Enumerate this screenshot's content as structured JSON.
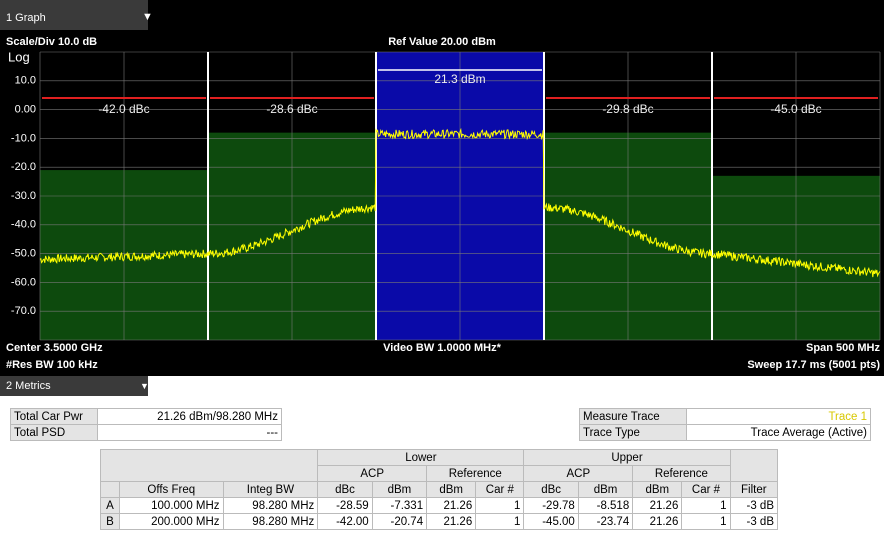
{
  "graph": {
    "tab": "1 Graph",
    "scale": "Scale/Div 10.0 dB",
    "ref": "Ref Value 20.00 dBm",
    "log": "Log",
    "yticks": [
      "10.0",
      "0.00",
      "-10.0",
      "-20.0",
      "-30.0",
      "-40.0",
      "-50.0",
      "-60.0",
      "-70.0"
    ],
    "channel_labels": [
      "-42.0 dBc",
      "-28.6 dBc",
      "21.3 dBm",
      "-29.8 dBc",
      "-45.0 dBc"
    ],
    "center": "Center 3.5000 GHz",
    "res_bw": "#Res BW 100 kHz",
    "video_bw": "Video BW 1.0000 MHz*",
    "span": "Span 500 MHz",
    "sweep": "Sweep 17.7 ms  (5001 pts)"
  },
  "metrics": {
    "tab": "2 Metrics",
    "left": [
      [
        "Total Car Pwr",
        "21.26 dBm/98.280 MHz"
      ],
      [
        "Total PSD",
        "---"
      ]
    ],
    "right": [
      [
        "Measure Trace",
        "Trace 1"
      ],
      [
        "Trace Type",
        "Trace Average (Active)"
      ]
    ],
    "table": {
      "group": [
        "Lower",
        "Upper"
      ],
      "sub": [
        "ACP",
        "Reference",
        "ACP",
        "Reference"
      ],
      "header": [
        "Offs Freq",
        "Integ BW",
        "dBc",
        "dBm",
        "dBm",
        "Car #",
        "dBc",
        "dBm",
        "dBm",
        "Car #",
        "Filter"
      ],
      "rows": [
        [
          "A",
          "100.000 MHz",
          "98.280 MHz",
          "-28.59",
          "-7.331",
          "21.26",
          "1",
          "-29.78",
          "-8.518",
          "21.26",
          "1",
          "-3 dB"
        ],
        [
          "B",
          "200.000 MHz",
          "98.280 MHz",
          "-42.00",
          "-20.74",
          "21.26",
          "1",
          "-45.00",
          "-23.74",
          "21.26",
          "1",
          "-3 dB"
        ]
      ]
    }
  }
}
